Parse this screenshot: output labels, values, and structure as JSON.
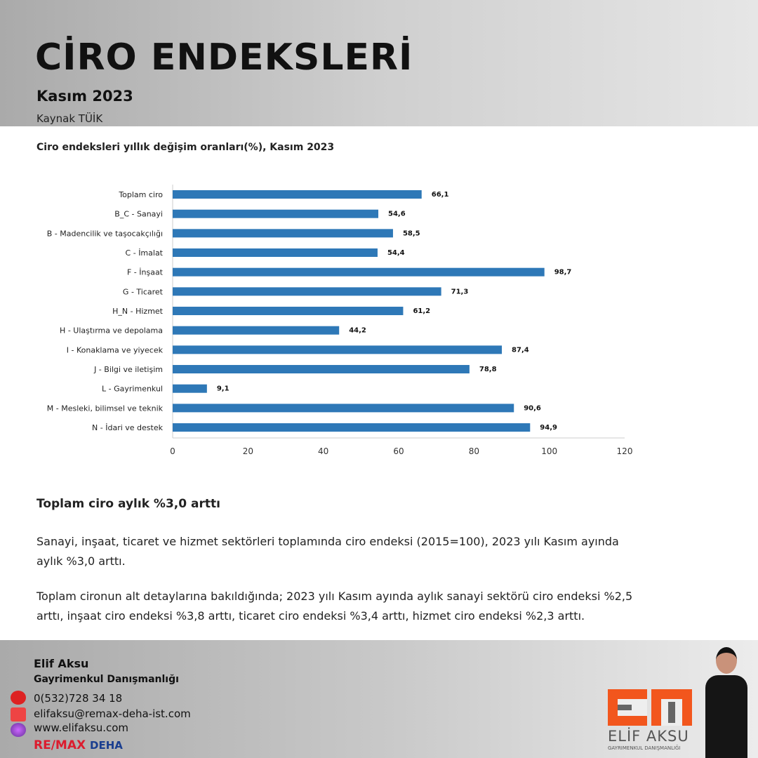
{
  "header": {
    "title": "CİRO ENDEKSLERİ",
    "subtitle": "Kasım 2023",
    "source": "Kaynak TÜİK"
  },
  "chart_data": {
    "type": "bar",
    "orientation": "horizontal",
    "title": "Ciro endeksleri yıllık değişim oranları(%), Kasım 2023",
    "categories": [
      "Toplam ciro",
      "B_C - Sanayi",
      "B - Madencilik ve taşocakçılığı",
      "C - İmalat",
      "F - İnşaat",
      "G - Ticaret",
      "H_N - Hizmet",
      "H - Ulaştırma ve depolama",
      "I - Konaklama ve yiyecek",
      "J - Bilgi ve iletişim",
      "L - Gayrimenkul",
      "M - Mesleki, bilimsel ve teknik",
      "N - İdari ve destek"
    ],
    "values": [
      66.1,
      54.6,
      58.5,
      54.4,
      98.7,
      71.3,
      61.2,
      44.2,
      87.4,
      78.8,
      9.1,
      90.6,
      94.9
    ],
    "value_labels": [
      "66,1",
      "54,6",
      "58,5",
      "54,4",
      "98,7",
      "71,3",
      "61,2",
      "44,2",
      "87,4",
      "78,8",
      "9,1",
      "90,6",
      "94,9"
    ],
    "xlim": [
      0,
      120
    ],
    "xticks": [
      "0",
      "20",
      "40",
      "60",
      "80",
      "100",
      "120"
    ],
    "bar_color": "#2e78b7",
    "grid": false
  },
  "article": {
    "heading": "Toplam ciro aylık %3,0 arttı",
    "p1": "Sanayi, inşaat, ticaret ve hizmet sektörleri toplamında ciro endeksi (2015=100), 2023 yılı Kasım ayında aylık %3,0 arttı.",
    "p2": "Toplam cironun alt detaylarına bakıldığında; 2023 yılı Kasım ayında aylık sanayi sektörü ciro endeksi %2,5 arttı, inşaat ciro endeksi %3,8 arttı, ticaret ciro endeksi %3,4 arttı, hizmet ciro endeksi %2,3 arttı."
  },
  "footer": {
    "name": "Elif Aksu",
    "role": "Gayrimenkul Danışmanlığı",
    "phone": "0(532)728 34 18",
    "email": "elifaksu@remax-deha-ist.com",
    "web": "www.elifaksu.com",
    "brand1": "RE/MAX",
    "brand2": "DEHA",
    "logo_name": "ELİF AKSU",
    "logo_sub": "GAYRIMENKUL DANIŞMANLIĞI"
  }
}
